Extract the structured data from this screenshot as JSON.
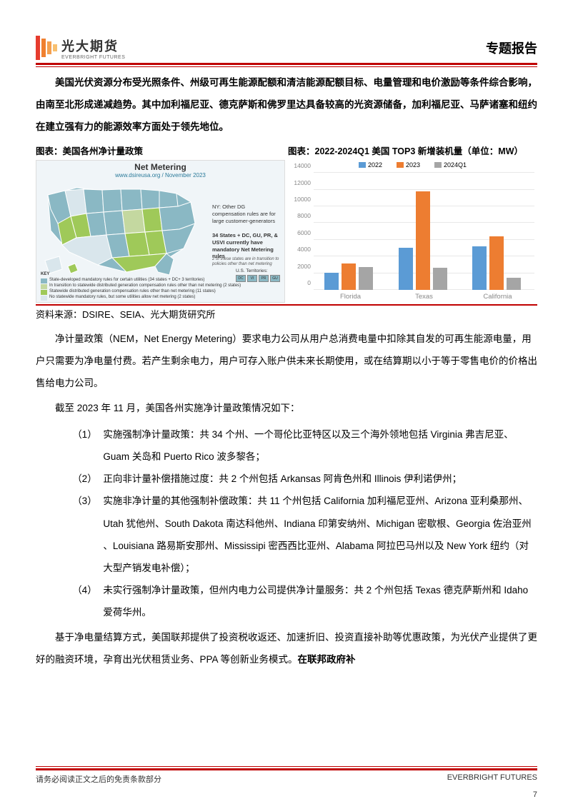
{
  "header": {
    "logo_cn": "光大期货",
    "logo_en": "EVERBRIGHT FUTURES",
    "report_title": "专题报告"
  },
  "intro_text": "美国光伏资源分布受光照条件、州级可再生能源配额和清洁能源配额目标、电量管理和电价激励等条件综合影响，由南至北形成递减趋势。其中加利福尼亚、德克萨斯和佛罗里达具备较高的光资源储备，加利福尼亚、马萨诸塞和纽约在建立强有力的能源效率方面处于领先地位。",
  "chart_left": {
    "title": "图表：美国各州净计量政策",
    "map_title": "Net Metering",
    "map_sub": "www.dsireusa.org / November 2023",
    "note1": "NY: Other DG compensation rules are for large customer-generators",
    "note2": "34 States + DC, GU, PR, & USVI currently have mandatory Net Metering rules",
    "note3": "2 of these states are in transition to policies other than net metering",
    "key_header": "KEY",
    "key1": "State-developed mandatory rules for certain utilities (34 states + DC+ 3 territories)",
    "key2": "In transition to statewide distributed generation compensation rules other than net metering (2 states)",
    "key3": "Statewide distributed generation compensation rules other than net metering (11 states)",
    "key4": "No statewide mandatory rules, but some utilities allow net metering (2 states)",
    "terr_label": "U.S. Territories:",
    "terr_boxes": [
      "DC",
      "VI",
      "PR",
      "GU"
    ],
    "colors": {
      "c1": "#8ab8c4",
      "c2": "#c4d8a0",
      "c3": "#9fc959",
      "c4": "#d9e6ec"
    }
  },
  "chart_right": {
    "title": "图表：2022-2024Q1 美国 TOP3 新增装机量（单位：MW）",
    "legend": [
      "2022",
      "2023",
      "2024Q1"
    ],
    "legend_colors": [
      "#5b9bd5",
      "#ed7d31",
      "#a5a5a5"
    ],
    "categories": [
      "Florida",
      "Texas",
      "California"
    ],
    "values_2022": [
      2100,
      5050,
      5250
    ],
    "values_2023": [
      3200,
      11800,
      6400
    ],
    "values_2024q1": [
      2750,
      2650,
      1450
    ],
    "ymax": 14000,
    "ytick_step": 2000,
    "grid_color": "#e8e8e8",
    "axis_color": "#888888"
  },
  "source": "资料来源：DSIRE、SEIA、光大期货研究所",
  "para1": "净计量政策（NEM，Net Energy Metering）要求电力公司从用户总消费电量中扣除其自发的可再生能源电量，用户只需要为净电量付费。若产生剩余电力，用户可存入账户供未来长期使用，或在结算期以小于等于零售电价的价格出售给电力公司。",
  "para2": "截至 2023 年 11 月，美国各州实施净计量政策情况如下：",
  "policies": [
    {
      "num": "（1）",
      "body": "实施强制净计量政策：共 34 个州、一个哥伦比亚特区以及三个海外领地包括 Virginia 弗吉尼亚、Guam 关岛和 Puerto Rico 波多黎各；"
    },
    {
      "num": "（2）",
      "body": "正向非计量补偿措施过度：共 2 个州包括 Arkansas 阿肯色州和 Illinois 伊利诺伊州；"
    },
    {
      "num": "（3）",
      "body": "实施非净计量的其他强制补偿政策：共 11 个州包括 California 加利福尼亚州、Arizona 亚利桑那州、Utah 犹他州、South Dakota 南达科他州、Indiana 印第安纳州、Michigan 密歇根、Georgia 佐治亚州 、Louisiana 路易斯安那州、Mississipi 密西西比亚州、Alabama 阿拉巴马州以及 New York 纽约（对大型产销发电补偿）；"
    },
    {
      "num": "（4）",
      "body": "未实行强制净计量政策，但州内电力公司提供净计量服务：共 2 个州包括 Texas 德克萨斯州和 Idaho 爱荷华州。"
    }
  ],
  "para3_plain": "基于净电量结算方式，美国联邦提供了投资税收返还、加速折旧、投资直接补助等优惠政策，为光伏产业提供了更好的融资环境，孕育出光伏租赁业务、PPA 等创新业务模式。",
  "para3_bold": "在联邦政府补",
  "footer": {
    "left": "请务必阅读正文之后的免责条款部分",
    "right": "EVERBRIGHT FUTURES",
    "page": "7"
  }
}
